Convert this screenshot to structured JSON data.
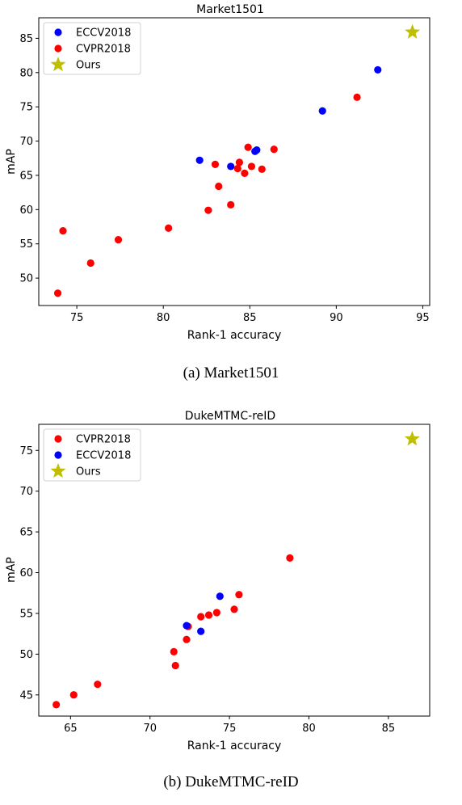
{
  "chart_data": [
    {
      "type": "scatter",
      "title": "Market1501",
      "xlabel": "Rank-1 accuracy",
      "ylabel": "mAP",
      "xlim": [
        72.8,
        95.4
      ],
      "ylim": [
        46.0,
        88.0
      ],
      "xticks": [
        75,
        80,
        85,
        90,
        95
      ],
      "yticks": [
        50,
        55,
        60,
        65,
        70,
        75,
        80,
        85
      ],
      "caption": "(a)  Market1501",
      "legend_position": "top-left",
      "series": [
        {
          "name": "ECCV2018",
          "color": "#0000ff",
          "marker": "circle",
          "points": [
            [
              82.1,
              67.2
            ],
            [
              83.9,
              66.3
            ],
            [
              85.3,
              68.5
            ],
            [
              85.4,
              68.7
            ],
            [
              89.2,
              74.4
            ],
            [
              92.4,
              80.4
            ]
          ]
        },
        {
          "name": "CVPR2018",
          "color": "#ff0000",
          "marker": "circle",
          "points": [
            [
              73.9,
              47.8
            ],
            [
              74.2,
              56.9
            ],
            [
              75.8,
              52.2
            ],
            [
              77.4,
              55.6
            ],
            [
              80.3,
              57.3
            ],
            [
              82.6,
              59.9
            ],
            [
              83.0,
              66.6
            ],
            [
              83.2,
              63.4
            ],
            [
              83.9,
              60.7
            ],
            [
              84.3,
              66.0
            ],
            [
              84.4,
              66.9
            ],
            [
              84.7,
              65.3
            ],
            [
              84.9,
              69.1
            ],
            [
              85.1,
              66.3
            ],
            [
              85.7,
              65.9
            ],
            [
              86.4,
              68.8
            ],
            [
              91.2,
              76.4
            ]
          ]
        },
        {
          "name": "Ours",
          "color": "#bfbf00",
          "marker": "star",
          "points": [
            [
              94.4,
              85.9
            ]
          ]
        }
      ]
    },
    {
      "type": "scatter",
      "title": "DukeMTMC-reID",
      "xlabel": "Rank-1 accuracy",
      "ylabel": "mAP",
      "xlim": [
        63.0,
        87.6
      ],
      "ylim": [
        42.4,
        78.2
      ],
      "xticks": [
        65,
        70,
        75,
        80,
        85
      ],
      "yticks": [
        45,
        50,
        55,
        60,
        65,
        70,
        75
      ],
      "caption": "(b)  DukeMTMC-reID",
      "legend_position": "top-left",
      "series": [
        {
          "name": "CVPR2018",
          "color": "#ff0000",
          "marker": "circle",
          "points": [
            [
              64.1,
              43.8
            ],
            [
              65.2,
              45.0
            ],
            [
              66.7,
              46.3
            ],
            [
              71.5,
              50.3
            ],
            [
              71.6,
              48.6
            ],
            [
              72.3,
              51.8
            ],
            [
              72.4,
              53.4
            ],
            [
              73.2,
              54.6
            ],
            [
              73.7,
              54.8
            ],
            [
              74.2,
              55.1
            ],
            [
              75.3,
              55.5
            ],
            [
              75.6,
              57.3
            ],
            [
              78.8,
              61.8
            ]
          ]
        },
        {
          "name": "ECCV2018",
          "color": "#0000ff",
          "marker": "circle",
          "points": [
            [
              72.3,
              53.5
            ],
            [
              73.2,
              52.8
            ],
            [
              74.4,
              57.1
            ]
          ]
        },
        {
          "name": "Ours",
          "color": "#bfbf00",
          "marker": "star",
          "points": [
            [
              86.5,
              76.4
            ]
          ]
        }
      ]
    }
  ]
}
